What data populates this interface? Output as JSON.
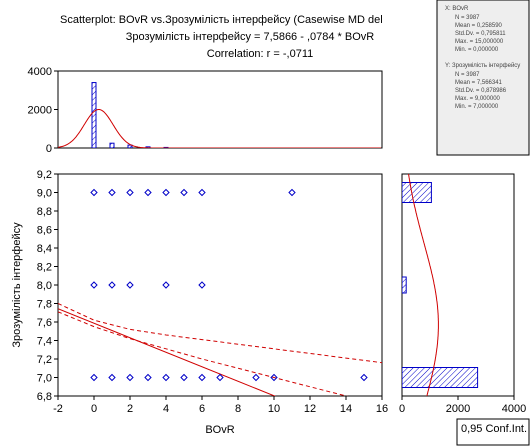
{
  "title_lines": [
    "Scatterplot: BOvR     vs.Зрозумілість інтерфейсу (Casewise MD del",
    "Зрозумілість інтерфейсу = 7,5866 - ,0784  * BOvR",
    "Correlation: r = -,0711"
  ],
  "legend": {
    "x_heading": "X:  BOvR",
    "x_stats": [
      "N = 3987",
      "Mean = 0,258590",
      "Std.Dv. = 0,795811",
      "Max. = 15,000000",
      "Min. = 0,000000"
    ],
    "y_heading": "Y:  Зрозумілість інтерфейсу",
    "y_stats": [
      "N = 3987",
      "Mean = 7,566341",
      "Std.Dv. = 0,878986",
      "Max. = 9,000000",
      "Min. = 7,000000"
    ]
  },
  "footer_label": "0,95 Conf.Int.",
  "colors": {
    "points": "#0000c8",
    "hatch": "#0000c8",
    "fit": "#d00000",
    "frame": "#000000",
    "legend_bg": "#eeeeee"
  },
  "chart_data": [
    {
      "type": "scatter",
      "title": "Scatterplot: BOvR     vs.Зрозумілість інтерфейсу (Casewise MD del",
      "xlabel": "BOvR",
      "ylabel": "Зрозумілість інтерфейсу",
      "xlim": [
        -2,
        16
      ],
      "ylim": [
        6.8,
        9.2
      ],
      "xticks": [
        "-2",
        "0",
        "2",
        "4",
        "6",
        "8",
        "10",
        "12",
        "14",
        "16"
      ],
      "yticks": [
        "6,8",
        "7,0",
        "7,2",
        "7,4",
        "7,6",
        "7,8",
        "8,0",
        "8,2",
        "8,4",
        "8,6",
        "8,8",
        "9,0",
        "9,2"
      ],
      "grid": false,
      "points": [
        {
          "x": 0,
          "y": 9
        },
        {
          "x": 1,
          "y": 9
        },
        {
          "x": 2,
          "y": 9
        },
        {
          "x": 3,
          "y": 9
        },
        {
          "x": 4,
          "y": 9
        },
        {
          "x": 5,
          "y": 9
        },
        {
          "x": 6,
          "y": 9
        },
        {
          "x": 11,
          "y": 9
        },
        {
          "x": 0,
          "y": 8
        },
        {
          "x": 1,
          "y": 8
        },
        {
          "x": 2,
          "y": 8
        },
        {
          "x": 4,
          "y": 8
        },
        {
          "x": 6,
          "y": 8
        },
        {
          "x": 0,
          "y": 7
        },
        {
          "x": 1,
          "y": 7
        },
        {
          "x": 2,
          "y": 7
        },
        {
          "x": 3,
          "y": 7
        },
        {
          "x": 4,
          "y": 7
        },
        {
          "x": 5,
          "y": 7
        },
        {
          "x": 6,
          "y": 7
        },
        {
          "x": 7,
          "y": 7
        },
        {
          "x": 9,
          "y": 7
        },
        {
          "x": 10,
          "y": 7
        },
        {
          "x": 15,
          "y": 7
        }
      ],
      "regression": {
        "intercept": 7.5866,
        "slope": -0.0784
      },
      "conf_band": {
        "x": [
          -2,
          0,
          2,
          4,
          6,
          8,
          10,
          12,
          14,
          16
        ],
        "lower": [
          7.71,
          7.55,
          7.42,
          7.31,
          7.2,
          7.1,
          7.0,
          6.9,
          6.8,
          6.7
        ],
        "upper": [
          7.8,
          7.62,
          7.52,
          7.46,
          7.41,
          7.36,
          7.31,
          7.26,
          7.21,
          7.16
        ]
      }
    },
    {
      "type": "bar",
      "subtitle": "X marginal histogram (BOvR)",
      "categories": [
        "0",
        "1",
        "2",
        "3",
        "4"
      ],
      "values": [
        3400,
        250,
        150,
        60,
        30
      ],
      "xlim": [
        -2,
        16
      ],
      "ylim": [
        0,
        4000
      ],
      "yticks": [
        "0",
        "2000",
        "4000"
      ],
      "normal_curve": {
        "mean": 0.26,
        "sd": 0.8,
        "peak": 2000
      }
    },
    {
      "type": "bar",
      "subtitle": "Y marginal histogram",
      "orientation": "horizontal",
      "categories": [
        "7",
        "8",
        "9"
      ],
      "values": [
        2700,
        150,
        1050
      ],
      "xlim": [
        0,
        4000
      ],
      "xticks": [
        "0",
        "2000",
        "4000"
      ],
      "ylim": [
        6.8,
        9.2
      ],
      "normal_curve": {
        "mean": 7.57,
        "sd": 0.88,
        "peak": 1300
      }
    }
  ]
}
